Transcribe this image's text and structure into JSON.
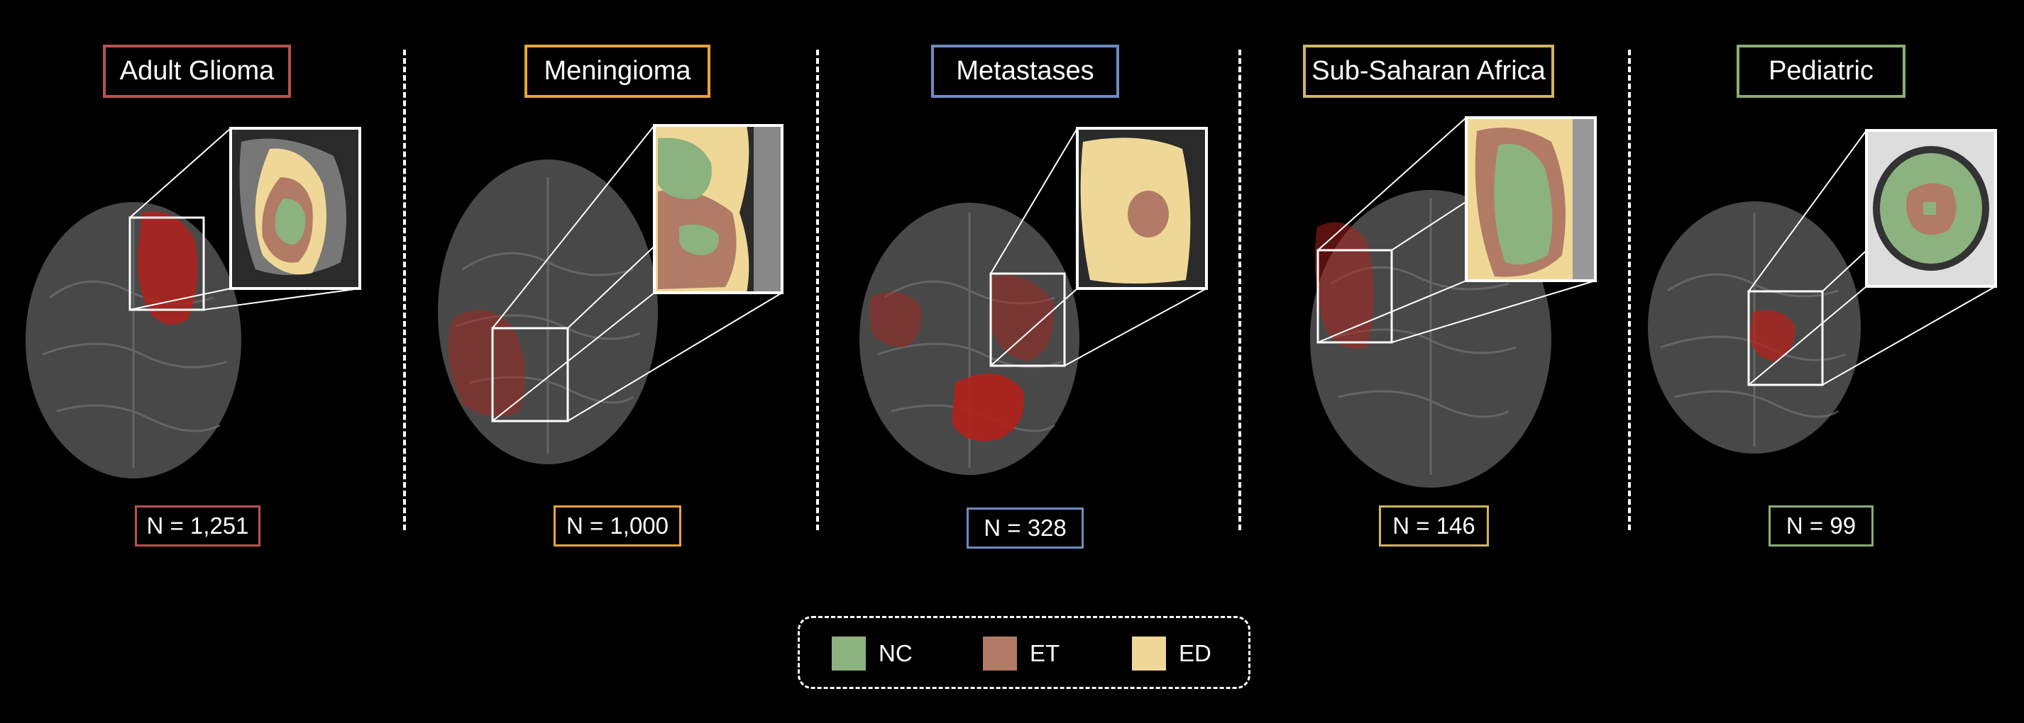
{
  "colors": {
    "NC": "#8cb27f",
    "ET": "#b17b66",
    "ED": "#efd897",
    "tumor": "#b3211b"
  },
  "panels": [
    {
      "title": "Adult Glioma",
      "count": "N = 1,251",
      "color": "#b9524e"
    },
    {
      "title": "Meningioma",
      "count": "N = 1,000",
      "color": "#e8a33d"
    },
    {
      "title": "Metastases",
      "count": "N = 328",
      "color": "#6e8bc2"
    },
    {
      "title": "Sub-Saharan Africa",
      "count": "N = 146",
      "color": "#d2b460"
    },
    {
      "title": "Pediatric",
      "count": "N = 99",
      "color": "#89ad72"
    }
  ],
  "legend": {
    "items": [
      {
        "key": "NC",
        "label": "NC"
      },
      {
        "key": "ET",
        "label": "ET"
      },
      {
        "key": "ED",
        "label": "ED"
      }
    ]
  }
}
